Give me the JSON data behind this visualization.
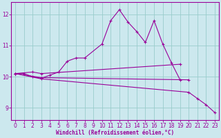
{
  "xlabel": "Windchill (Refroidissement éolien,°C)",
  "bg_color": "#cce8ee",
  "line_color": "#990099",
  "grid_color": "#99cccc",
  "xlim": [
    -0.5,
    23.5
  ],
  "ylim": [
    8.6,
    12.4
  ],
  "yticks": [
    9,
    10,
    11,
    12
  ],
  "xticks": [
    0,
    1,
    2,
    3,
    4,
    5,
    6,
    7,
    8,
    9,
    10,
    11,
    12,
    13,
    14,
    15,
    16,
    17,
    18,
    19,
    20,
    21,
    22,
    23
  ],
  "line1_x": [
    0,
    1,
    2,
    3,
    4,
    5,
    6,
    7,
    8,
    10,
    11,
    12,
    13,
    14,
    15,
    16,
    17,
    18,
    19
  ],
  "line1_y": [
    10.1,
    10.1,
    10.0,
    9.95,
    10.05,
    10.15,
    10.5,
    10.6,
    10.6,
    11.05,
    11.8,
    12.15,
    11.75,
    11.45,
    11.1,
    11.8,
    11.05,
    10.45,
    9.9
  ],
  "line2_x": [
    0,
    2,
    3,
    19
  ],
  "line2_y": [
    10.1,
    10.15,
    10.1,
    10.4
  ],
  "line3_x": [
    0,
    3,
    20
  ],
  "line3_y": [
    10.1,
    9.97,
    9.9
  ],
  "line4_x": [
    0,
    3,
    20,
    21,
    22,
    23
  ],
  "line4_y": [
    10.1,
    9.93,
    9.5,
    9.3,
    9.1,
    8.85
  ]
}
